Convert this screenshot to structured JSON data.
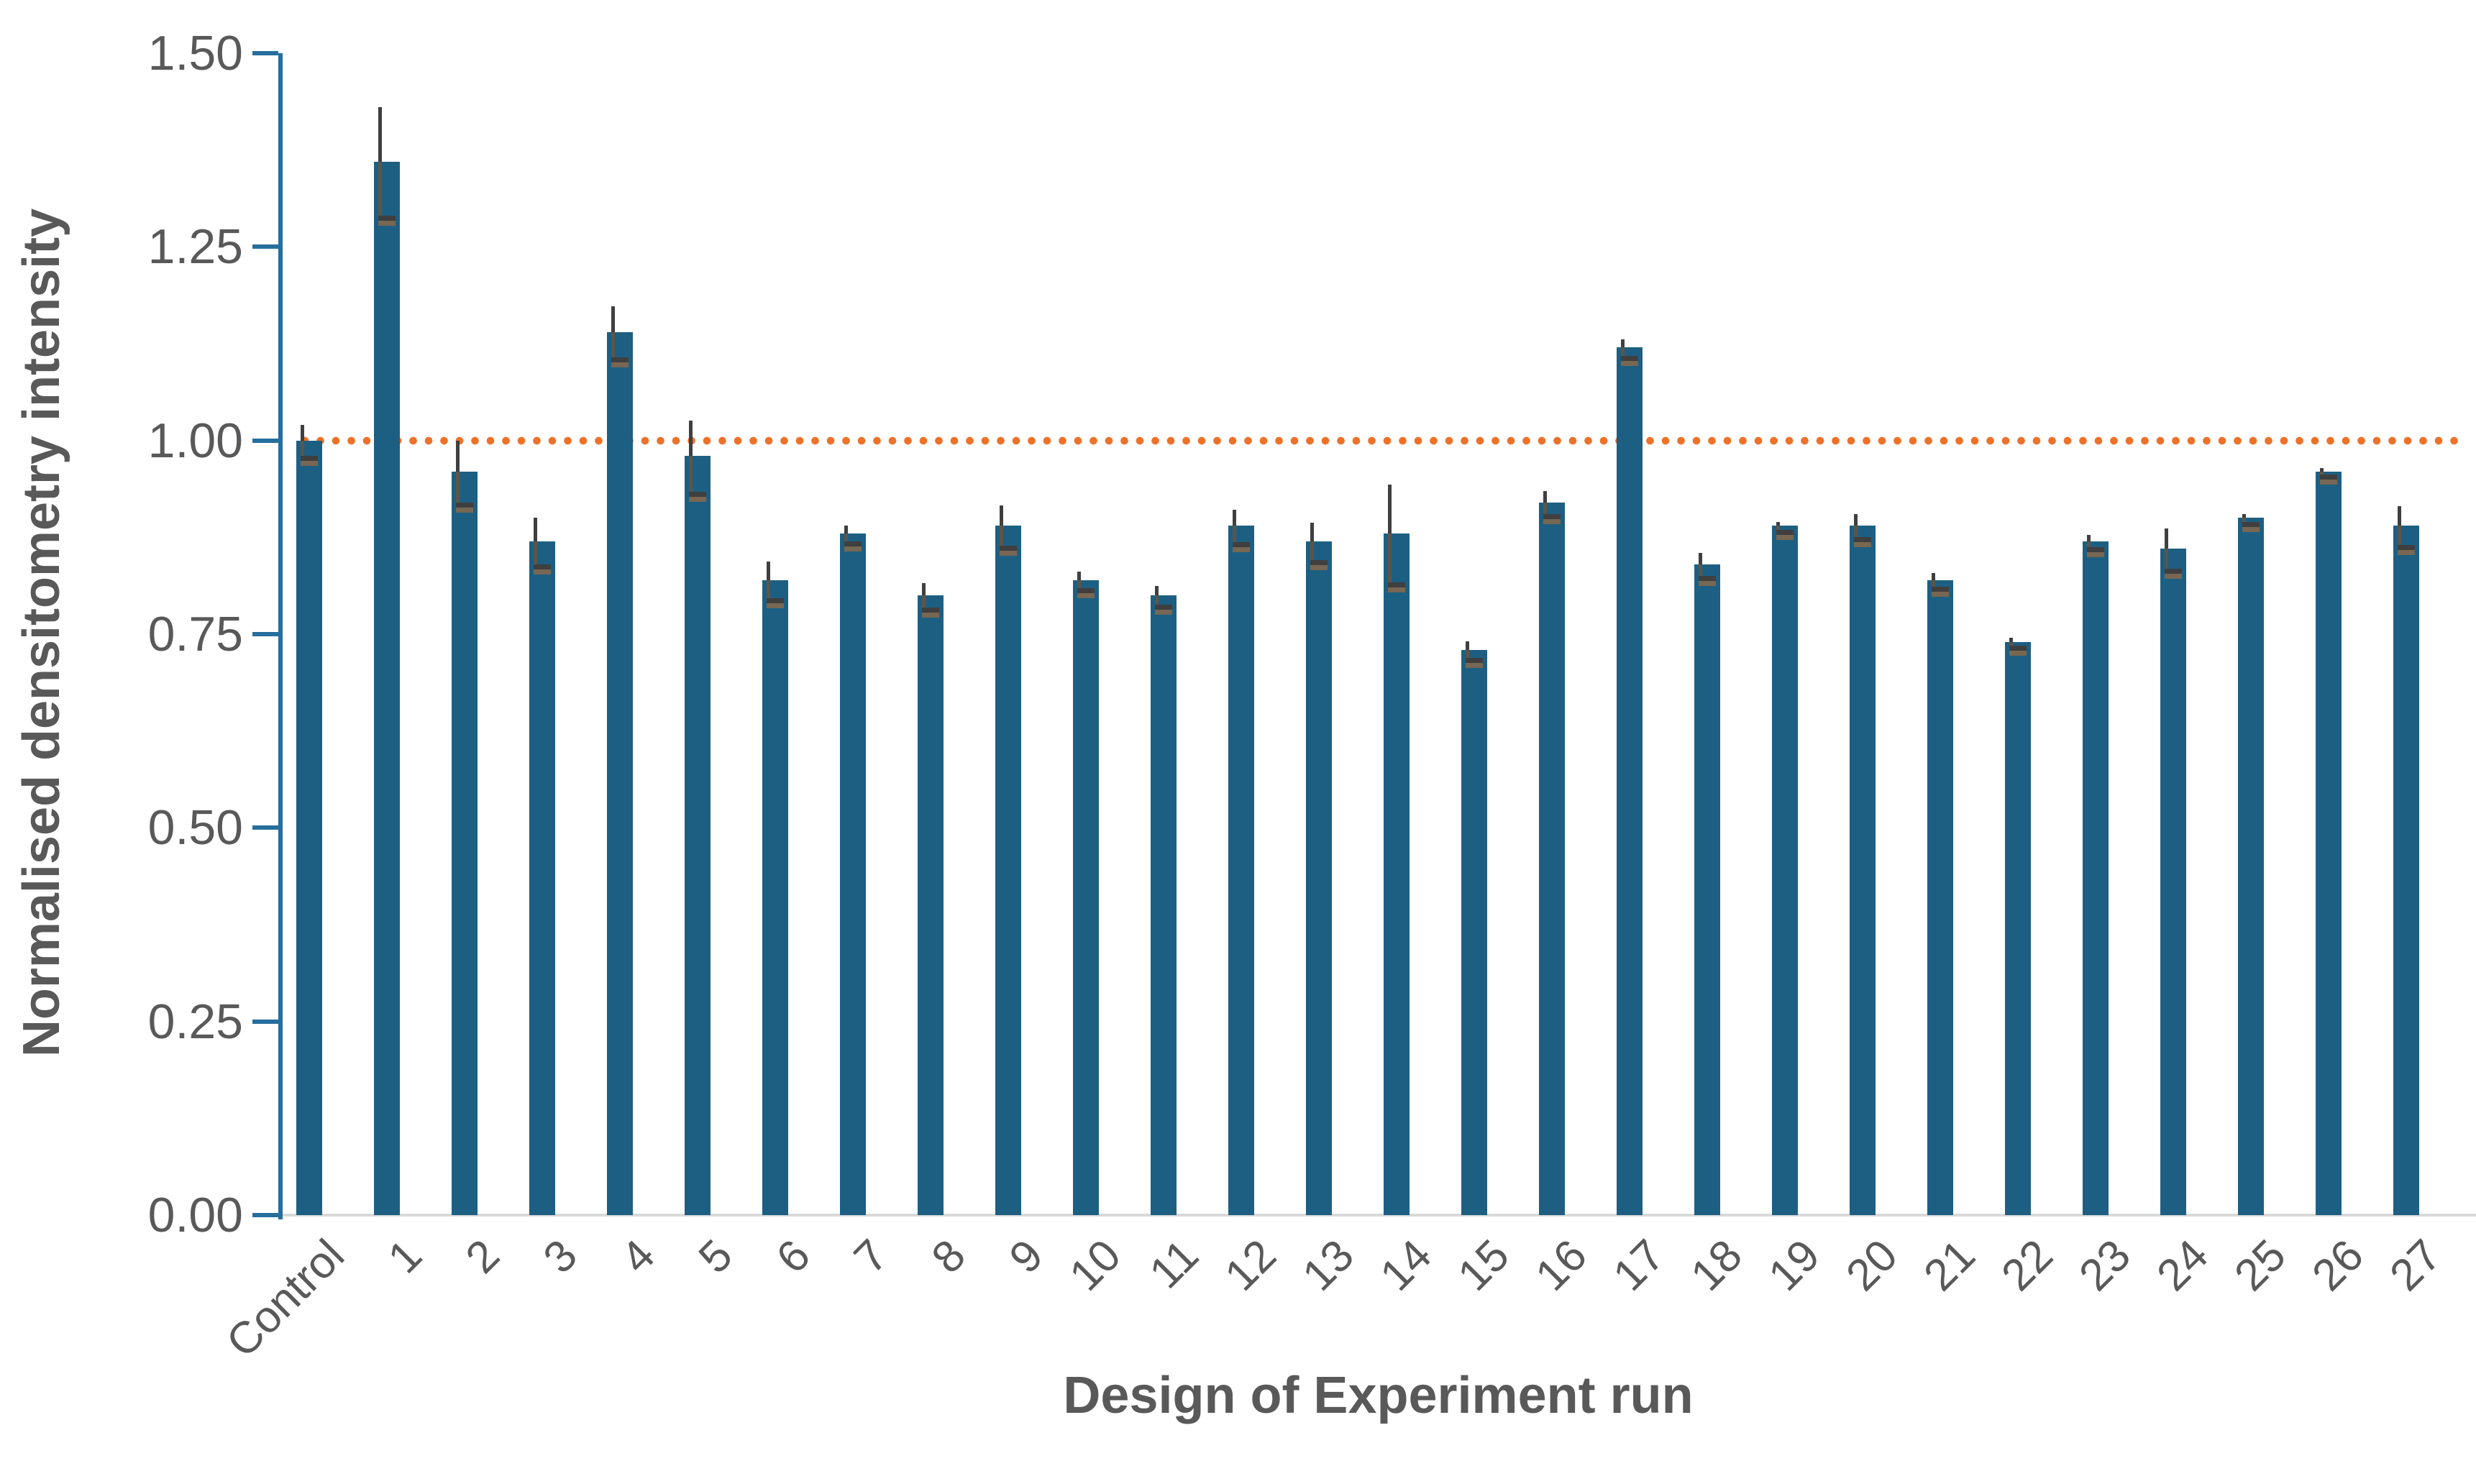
{
  "page": {
    "background": "#FFFFFF"
  },
  "chart_data": {
    "type": "bar",
    "title": "",
    "xlabel": "Design of Experiment run",
    "ylabel": "Normalised densitometry intensity",
    "categories": [
      "Control",
      "1",
      "2",
      "3",
      "4",
      "5",
      "6",
      "7",
      "8",
      "9",
      "10",
      "11",
      "12",
      "13",
      "14",
      "15",
      "16",
      "17",
      "18",
      "19",
      "20",
      "21",
      "22",
      "23",
      "24",
      "25",
      "26",
      "27"
    ],
    "values": [
      1.0,
      1.36,
      0.96,
      0.87,
      1.14,
      0.98,
      0.82,
      0.88,
      0.8,
      0.89,
      0.82,
      0.8,
      0.89,
      0.87,
      0.88,
      0.73,
      0.92,
      1.12,
      0.84,
      0.89,
      0.89,
      0.82,
      0.74,
      0.87,
      0.86,
      0.9,
      0.96,
      0.89
    ],
    "error_bars": [
      0.02,
      0.07,
      0.04,
      0.03,
      0.033,
      0.046,
      0.024,
      0.01,
      0.016,
      0.026,
      0.011,
      0.012,
      0.021,
      0.024,
      0.063,
      0.011,
      0.015,
      0.011,
      0.015,
      0.005,
      0.015,
      0.009,
      0.005,
      0.008,
      0.026,
      0.005,
      0.004,
      0.025
    ],
    "ylim": [
      0,
      1.5
    ],
    "yticks": [
      "0.00",
      "0.25",
      "0.50",
      "0.75",
      "1.00",
      "1.25",
      "1.50"
    ],
    "reference_line": {
      "value": 1.0,
      "style": "dotted",
      "color": "#ED7229"
    },
    "grid": false,
    "legend": null,
    "colors": {
      "bar": "#1D5F82",
      "axis": "#256E9D",
      "text": "#595959",
      "error_bar": "#3F3F3F",
      "error_lower_line": "#5D5549",
      "error_lower_cap": "#776753",
      "baseline": "#D9D9D9",
      "reference": "#ED7229"
    }
  }
}
